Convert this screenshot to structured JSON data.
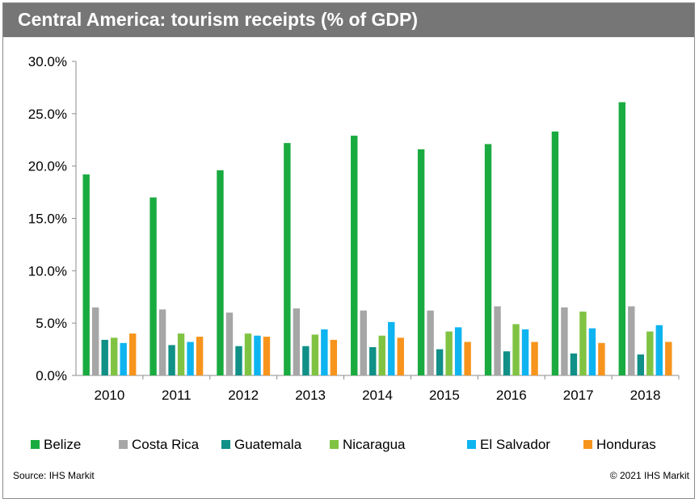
{
  "header": {
    "title": "Central America: tourism receipts (% of GDP)"
  },
  "footer": {
    "source": "Source: IHS Markit",
    "copyright": "© 2021 IHS Markit"
  },
  "chart_data": {
    "type": "bar",
    "title": "Central America: tourism receipts (% of GDP)",
    "categories": [
      "2010",
      "2011",
      "2012",
      "2013",
      "2014",
      "2015",
      "2016",
      "2017",
      "2018"
    ],
    "ylim": [
      0,
      30
    ],
    "yticks": [
      "0.0%",
      "5.0%",
      "10.0%",
      "15.0%",
      "20.0%",
      "25.0%",
      "30.0%"
    ],
    "ytick_values": [
      0,
      5,
      10,
      15,
      20,
      25,
      30
    ],
    "grid": false,
    "legend_position": "bottom",
    "series": [
      {
        "name": "Belize",
        "color": "#1aab40",
        "values": [
          19.2,
          17.0,
          19.6,
          22.2,
          22.9,
          21.6,
          22.1,
          23.3,
          26.1
        ]
      },
      {
        "name": "Costa Rica",
        "color": "#a6a6a6",
        "values": [
          6.5,
          6.3,
          6.0,
          6.4,
          6.2,
          6.2,
          6.6,
          6.5,
          6.6
        ]
      },
      {
        "name": "Guatemala",
        "color": "#109087",
        "values": [
          3.4,
          2.9,
          2.8,
          2.8,
          2.7,
          2.5,
          2.3,
          2.1,
          2.0
        ]
      },
      {
        "name": "Nicaragua",
        "color": "#80c342",
        "values": [
          3.6,
          4.0,
          4.0,
          3.9,
          3.8,
          4.2,
          4.9,
          6.1,
          4.2
        ]
      },
      {
        "name": "El Salvador",
        "color": "#0eb4f0",
        "values": [
          3.1,
          3.2,
          3.8,
          4.4,
          5.1,
          4.6,
          4.4,
          4.5,
          4.8
        ]
      },
      {
        "name": "Honduras",
        "color": "#f7941d",
        "values": [
          4.0,
          3.7,
          3.7,
          3.4,
          3.6,
          3.2,
          3.2,
          3.1,
          3.2
        ]
      }
    ]
  }
}
